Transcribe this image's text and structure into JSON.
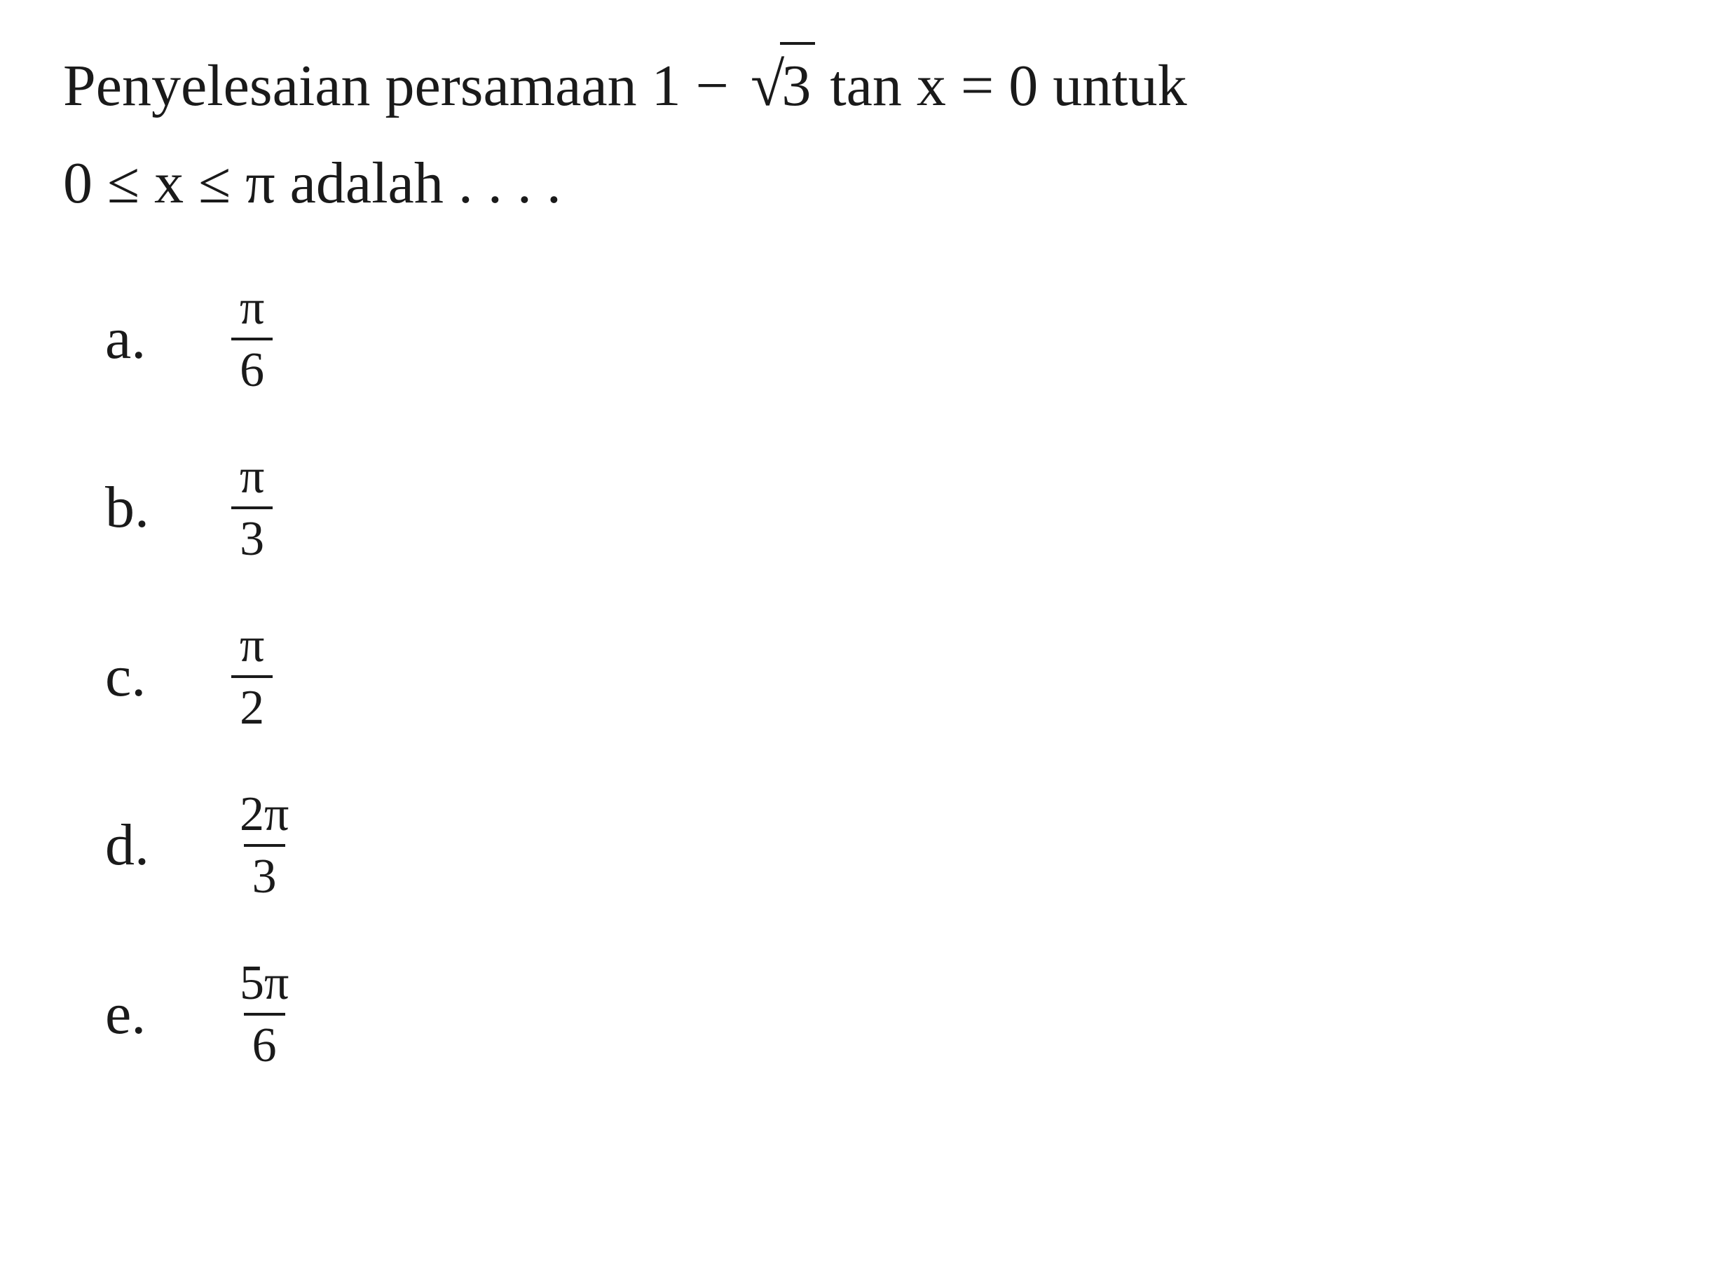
{
  "question": {
    "text_part1": "Penyelesaian persamaan 1 − ",
    "sqrt_value": "3",
    "text_part2": " tan x = 0 untuk",
    "line2_part1": "0 ",
    "leq1": "≤",
    "line2_part2": " x ",
    "leq2": "≤",
    "line2_part3": " π adalah . . . ."
  },
  "options": {
    "a": {
      "label": "a.",
      "numerator": "π",
      "denominator": "6"
    },
    "b": {
      "label": "b.",
      "numerator": "π",
      "denominator": "3"
    },
    "c": {
      "label": "c.",
      "numerator": "π",
      "denominator": "2"
    },
    "d": {
      "label": "d.",
      "numerator": "2π",
      "denominator": "3"
    },
    "e": {
      "label": "e.",
      "numerator": "5π",
      "denominator": "6"
    }
  },
  "styling": {
    "background_color": "#ffffff",
    "text_color": "#1a1a1a",
    "font_family": "Times New Roman",
    "question_fontsize": 84,
    "option_fontsize": 84,
    "fraction_fontsize": 70,
    "border_width": 4
  }
}
